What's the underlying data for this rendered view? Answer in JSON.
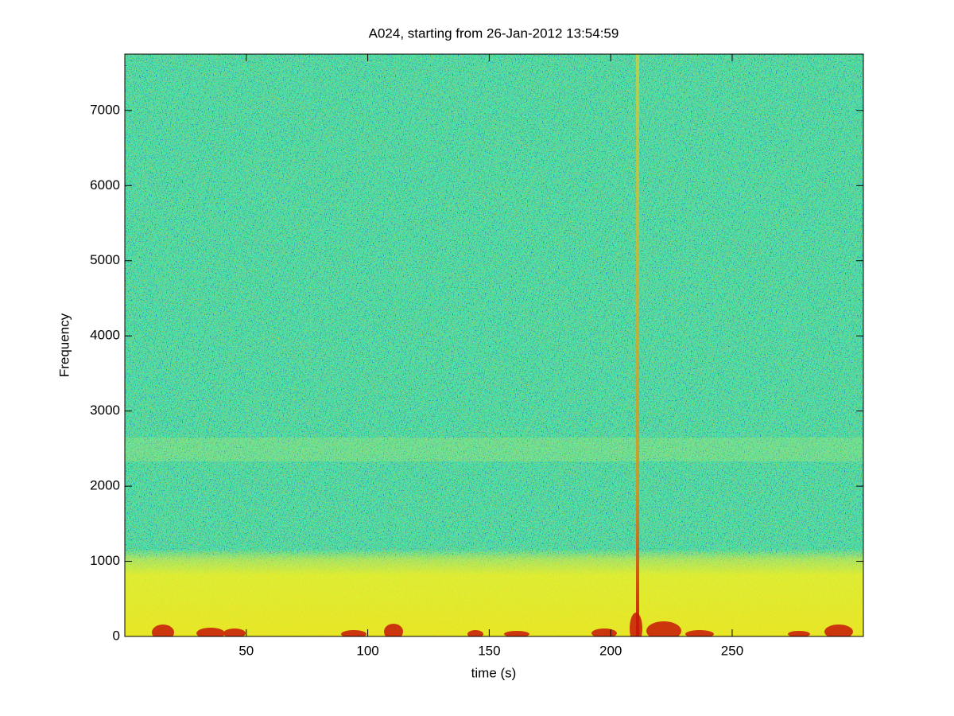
{
  "chart_data": {
    "type": "spectrogram",
    "title": "A024, starting from 26-Jan-2012 13:54:59",
    "x_label": "time (s)",
    "y_label": "Frequency",
    "xlim": [
      0,
      304
    ],
    "xticks": [
      50,
      100,
      150,
      200,
      250
    ],
    "ylim": [
      0,
      7750
    ],
    "yticks": [
      0,
      1000,
      2000,
      3000,
      4000,
      5000,
      6000,
      7000
    ]
  }
}
